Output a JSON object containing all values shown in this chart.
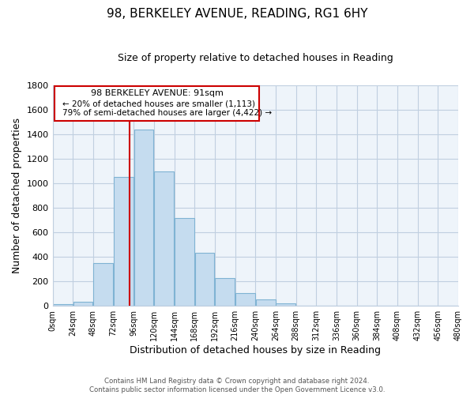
{
  "title": "98, BERKELEY AVENUE, READING, RG1 6HY",
  "subtitle": "Size of property relative to detached houses in Reading",
  "xlabel": "Distribution of detached houses by size in Reading",
  "ylabel": "Number of detached properties",
  "bar_color": "#c5dcef",
  "bar_edge_color": "#7fb3d3",
  "highlight_color": "#cc0000",
  "property_size": 91,
  "bin_edges": [
    0,
    24,
    48,
    72,
    96,
    120,
    144,
    168,
    192,
    216,
    240,
    264,
    288,
    312,
    336,
    360,
    384,
    408,
    432,
    456,
    480
  ],
  "bin_counts": [
    15,
    35,
    350,
    1055,
    1440,
    1095,
    720,
    435,
    225,
    105,
    55,
    20,
    5,
    2,
    1,
    0,
    0,
    0,
    0,
    0
  ],
  "tick_labels": [
    "0sqm",
    "24sqm",
    "48sqm",
    "72sqm",
    "96sqm",
    "120sqm",
    "144sqm",
    "168sqm",
    "192sqm",
    "216sqm",
    "240sqm",
    "264sqm",
    "288sqm",
    "312sqm",
    "336sqm",
    "360sqm",
    "384sqm",
    "408sqm",
    "432sqm",
    "456sqm",
    "480sqm"
  ],
  "ylim": [
    0,
    1800
  ],
  "yticks": [
    0,
    200,
    400,
    600,
    800,
    1000,
    1200,
    1400,
    1600,
    1800
  ],
  "annotation_title": "98 BERKELEY AVENUE: 91sqm",
  "annotation_line1": "← 20% of detached houses are smaller (1,113)",
  "annotation_line2": "79% of semi-detached houses are larger (4,422) →",
  "footer_line1": "Contains HM Land Registry data © Crown copyright and database right 2024.",
  "footer_line2": "Contains public sector information licensed under the Open Government Licence v3.0.",
  "background_color": "#ffffff",
  "plot_bg_color": "#eef4fa",
  "grid_color": "#c0cfe0"
}
